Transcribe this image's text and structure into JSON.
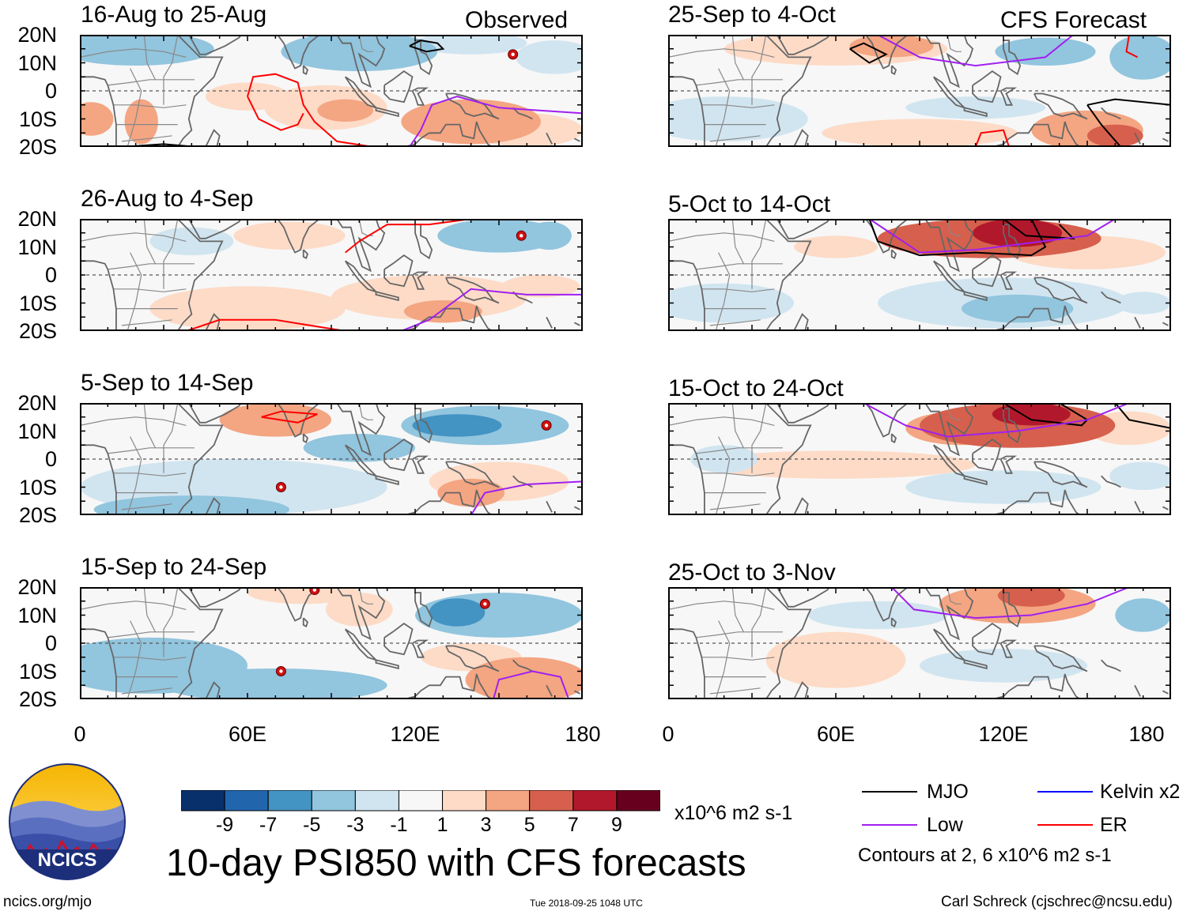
{
  "title": "10-day PSI850 with CFS forecasts",
  "headers": {
    "observed": "Observed",
    "forecast": "CFS Forecast"
  },
  "lat_labels": [
    "20N",
    "10N",
    "0",
    "10S",
    "20S"
  ],
  "lon_labels": [
    "0",
    "60E",
    "120E",
    "180"
  ],
  "panels": [
    {
      "title": "16-Aug to 25-Aug",
      "type": "observed"
    },
    {
      "title": "26-Aug to 4-Sep",
      "type": "observed"
    },
    {
      "title": "5-Sep to 14-Sep",
      "type": "observed"
    },
    {
      "title": "15-Sep to 24-Sep",
      "type": "observed"
    },
    {
      "title": "25-Sep to 4-Oct",
      "type": "forecast"
    },
    {
      "title": "5-Oct to 14-Oct",
      "type": "forecast"
    },
    {
      "title": "15-Oct to 24-Oct",
      "type": "forecast"
    },
    {
      "title": "25-Oct to 3-Nov",
      "type": "forecast"
    }
  ],
  "colorbar": {
    "ticks": [
      "-9",
      "-7",
      "-5",
      "-3",
      "-1",
      "1",
      "3",
      "5",
      "7",
      "9"
    ],
    "units": "x10^6 m2 s-1",
    "colors": [
      "#08306b",
      "#2166ac",
      "#4393c3",
      "#92c5de",
      "#d1e5f0",
      "#f7f7f7",
      "#fddbc7",
      "#f4a582",
      "#d6604d",
      "#b2182b",
      "#67001f"
    ]
  },
  "legend": {
    "items": [
      {
        "label": "MJO",
        "color": "#000000"
      },
      {
        "label": "Kelvin x2",
        "color": "#0000ff"
      },
      {
        "label": "Low",
        "color": "#a020f0"
      },
      {
        "label": "ER",
        "color": "#ff0000"
      }
    ],
    "note": "Contours at 2, 6 x10^6 m2 s-1"
  },
  "logo": {
    "text": "NCICS"
  },
  "footer": {
    "url": "ncics.org/mjo",
    "timestamp": "Tue 2018-09-25 1048 UTC",
    "credit": "Carl Schreck (cjschrec@ncsu.edu)"
  }
}
